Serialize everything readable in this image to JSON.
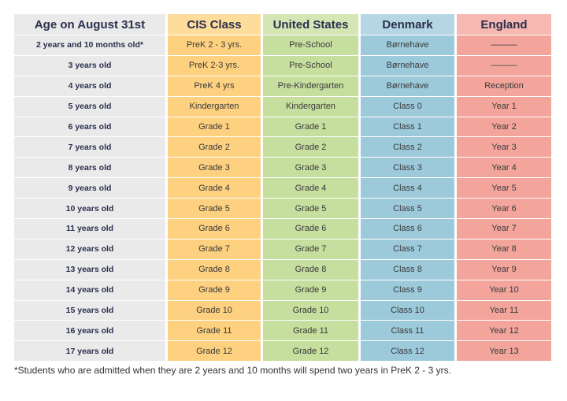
{
  "table": {
    "header": [
      "Age on August 31st",
      "CIS Class",
      "United States",
      "Denmark",
      "England"
    ],
    "rows": [
      [
        "2 years and 10 months old*",
        "PreK 2 - 3 yrs.",
        "Pre-School",
        "Børnehave",
        "———"
      ],
      [
        "3 years old",
        "PreK 2-3 yrs.",
        "Pre-School",
        "Børnehave",
        "———"
      ],
      [
        "4 years old",
        "PreK 4 yrs",
        "Pre-Kindergarten",
        "Børnehave",
        "Reception"
      ],
      [
        "5 years old",
        "Kindergarten",
        "Kindergarten",
        "Class 0",
        "Year 1"
      ],
      [
        "6 years old",
        "Grade 1",
        "Grade 1",
        "Class 1",
        "Year 2"
      ],
      [
        "7 years old",
        "Grade 2",
        "Grade 2",
        "Class 2",
        "Year 3"
      ],
      [
        "8 years old",
        "Grade 3",
        "Grade 3",
        "Class 3",
        "Year 4"
      ],
      [
        "9 years old",
        "Grade 4",
        "Grade 4",
        "Class 4",
        "Year 5"
      ],
      [
        "10 years old",
        "Grade 5",
        "Grade 5",
        "Class 5",
        "Year 6"
      ],
      [
        "11 years old",
        "Grade 6",
        "Grade 6",
        "Class 6",
        "Year 7"
      ],
      [
        "12 years old",
        "Grade 7",
        "Grade 7",
        "Class 7",
        "Year 8"
      ],
      [
        "13 years old",
        "Grade 8",
        "Grade 8",
        "Class 8",
        "Year 9"
      ],
      [
        "14 years old",
        "Grade 9",
        "Grade 9",
        "Class 9",
        "Year 10"
      ],
      [
        "15 years old",
        "Grade 10",
        "Grade 10",
        "Class 10",
        "Year 11"
      ],
      [
        "16 years old",
        "Grade 11",
        "Grade 11",
        "Class 11",
        "Year 12"
      ],
      [
        "17 years old",
        "Grade 12",
        "Grade 12",
        "Class 12",
        "Year 13"
      ]
    ]
  },
  "footnote": "*Students who are admitted when they are 2 years and 10 months will spend two years in PreK 2 - 3 yrs."
}
